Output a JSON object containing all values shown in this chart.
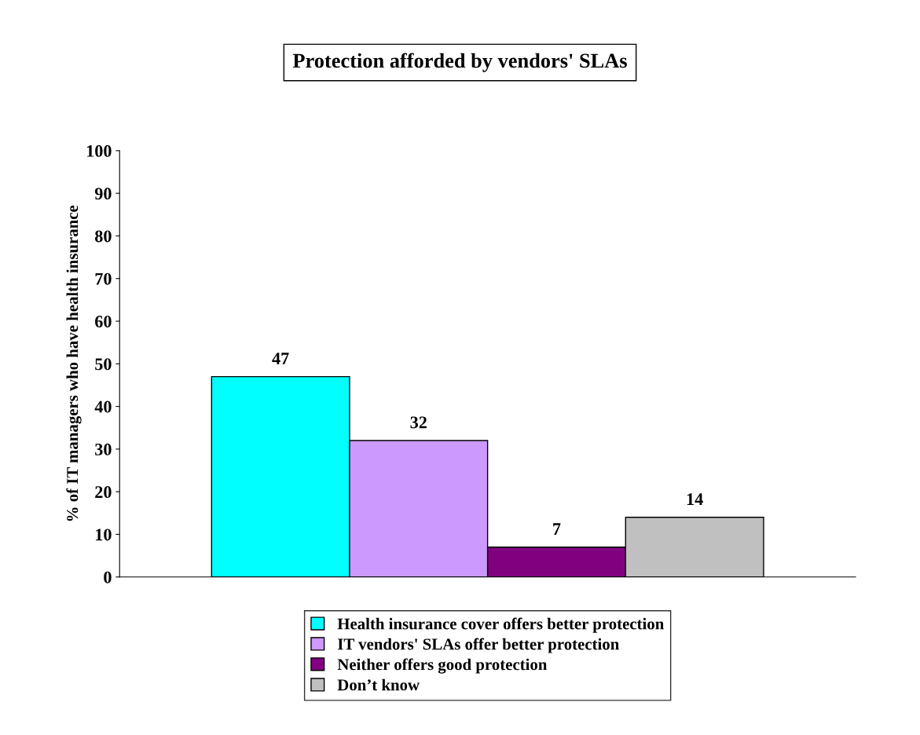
{
  "chart_data": {
    "type": "bar",
    "title": "Protection afforded by vendors' SLAs",
    "ylabel": "% of IT managers who have health insurance",
    "categories": [
      null
    ],
    "series": [
      {
        "name": "Health insurance cover offers better protection",
        "color": "#00ffff",
        "values": [
          47
        ]
      },
      {
        "name": "IT vendors' SLAs offer better protection",
        "color": "#cc99ff",
        "values": [
          32
        ]
      },
      {
        "name": "Neither offers good protection",
        "color": "#800080",
        "values": [
          7
        ]
      },
      {
        "name": "Don’t know",
        "color": "#c0c0c0",
        "values": [
          14
        ]
      }
    ],
    "ylim": [
      0,
      100
    ],
    "yticks": [
      0,
      10,
      20,
      30,
      40,
      50,
      60,
      70,
      80,
      90,
      100
    ],
    "data_labels": true,
    "grid": false,
    "legend": "bottom"
  }
}
